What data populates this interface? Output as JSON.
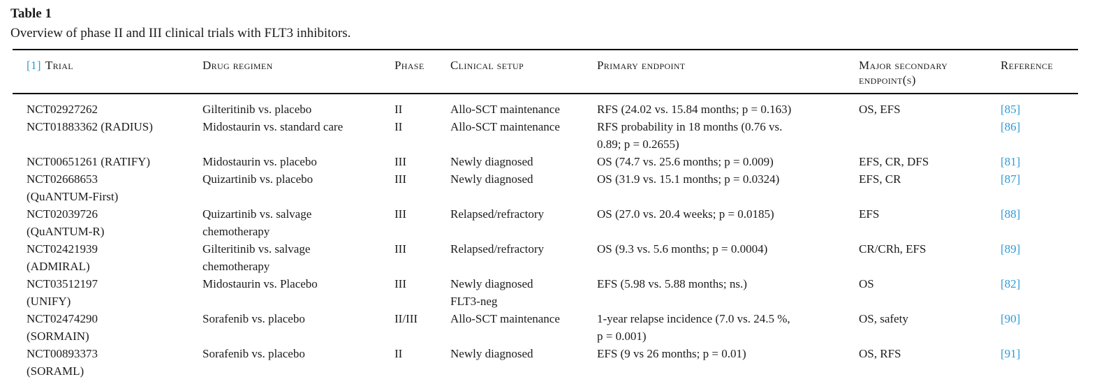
{
  "title": "Table 1",
  "caption": "Overview of phase II and III clinical trials with FLT3 inhibitors.",
  "colors": {
    "link_blue": "#2E9BD6",
    "text": "#1b1b1b",
    "rule": "#000000"
  },
  "header": {
    "trial_citation": "[1]",
    "columns": {
      "trial": "Trial",
      "drug_regimen": "Drug regimen",
      "phase": "Phase",
      "clinical_setup": "Clinical setup",
      "primary_endpoint": "Primary endpoint",
      "secondary_endpoints": "Major secondary endpoint(s)",
      "reference": "Reference"
    }
  },
  "rows": [
    {
      "trial": "NCT02927262",
      "drug_regimen": "Gilteritinib vs. placebo",
      "phase": "II",
      "clinical_setup": "Allo-SCT maintenance",
      "primary_endpoint": "RFS (24.02 vs. 15.84 months; p = 0.163)",
      "secondary_endpoints": "OS, EFS",
      "reference": "[85]"
    },
    {
      "trial": "NCT01883362 (RADIUS)",
      "drug_regimen": "Midostaurin vs. standard care",
      "phase": "II",
      "clinical_setup": "Allo-SCT maintenance",
      "primary_endpoint": "RFS probability in 18 months (0.76 vs.\n0.89; p = 0.2655)",
      "secondary_endpoints": "",
      "reference": "[86]"
    },
    {
      "trial": "NCT00651261 (RATIFY)",
      "drug_regimen": "Midostaurin vs. placebo",
      "phase": "III",
      "clinical_setup": "Newly diagnosed",
      "primary_endpoint": "OS (74.7 vs. 25.6 months; p = 0.009)",
      "secondary_endpoints": "EFS, CR, DFS",
      "reference": "[81]"
    },
    {
      "trial": "NCT02668653\n(QuANTUM-First)",
      "drug_regimen": "Quizartinib vs. placebo",
      "phase": "III",
      "clinical_setup": "Newly diagnosed",
      "primary_endpoint": "OS (31.9 vs. 15.1 months; p = 0.0324)",
      "secondary_endpoints": "EFS, CR",
      "reference": "[87]"
    },
    {
      "trial": "NCT02039726\n(QuANTUM-R)",
      "drug_regimen": "Quizartinib vs. salvage\nchemotherapy",
      "phase": "III",
      "clinical_setup": "Relapsed/refractory",
      "primary_endpoint": "OS (27.0 vs. 20.4 weeks; p = 0.0185)",
      "secondary_endpoints": "EFS",
      "reference": "[88]"
    },
    {
      "trial": "NCT02421939\n(ADMIRAL)",
      "drug_regimen": "Gilteritinib vs. salvage\nchemotherapy",
      "phase": "III",
      "clinical_setup": "Relapsed/refractory",
      "primary_endpoint": "OS (9.3 vs. 5.6 months; p = 0.0004)",
      "secondary_endpoints": "CR/CRh, EFS",
      "reference": "[89]"
    },
    {
      "trial": "NCT03512197\n(UNIFY)",
      "drug_regimen": "Midostaurin vs. Placebo",
      "phase": "III",
      "clinical_setup": "Newly diagnosed\nFLT3-neg",
      "primary_endpoint": "EFS (5.98 vs. 5.88 months; ns.)",
      "secondary_endpoints": "OS",
      "reference": "[82]"
    },
    {
      "trial": "NCT02474290\n(SORMAIN)",
      "drug_regimen": "Sorafenib vs. placebo",
      "phase": "II/III",
      "clinical_setup": "Allo-SCT maintenance",
      "primary_endpoint": "1-year relapse incidence (7.0 vs. 24.5 %,\np = 0.001)",
      "secondary_endpoints": "OS, safety",
      "reference": "[90]"
    },
    {
      "trial": "NCT00893373\n(SORAML)",
      "drug_regimen": "Sorafenib vs. placebo",
      "phase": "II",
      "clinical_setup": "Newly diagnosed",
      "primary_endpoint": "EFS (9 vs 26 months; p = 0.01)",
      "secondary_endpoints": "OS, RFS",
      "reference": "[91]"
    }
  ]
}
